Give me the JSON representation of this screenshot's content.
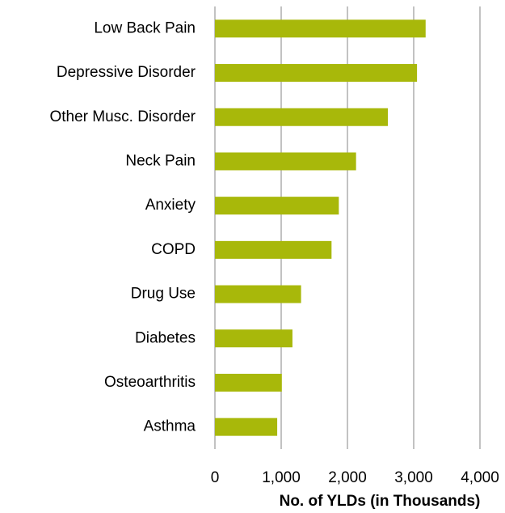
{
  "chart_data": {
    "type": "bar",
    "orientation": "horizontal",
    "x_label": "No. of YLDs (in Thousands)",
    "categories": [
      "Low Back Pain",
      "Depressive Disorder",
      "Other Musc. Disorder",
      "Neck Pain",
      "Anxiety",
      "COPD",
      "Drug Use",
      "Diabetes",
      "Osteoarthritis",
      "Asthma"
    ],
    "values": [
      3180,
      3050,
      2610,
      2130,
      1870,
      1760,
      1300,
      1170,
      1010,
      940
    ],
    "color": "#a8b80a",
    "xlim": [
      0,
      4000
    ],
    "xticks": [
      0,
      {
        "value": 1000,
        "label": "1,000"
      },
      {
        "value": 2000,
        "label": "2,000"
      },
      {
        "value": 3000,
        "label": "3,000"
      },
      {
        "value": 4000,
        "label": "4,000"
      }
    ],
    "grid": true
  }
}
